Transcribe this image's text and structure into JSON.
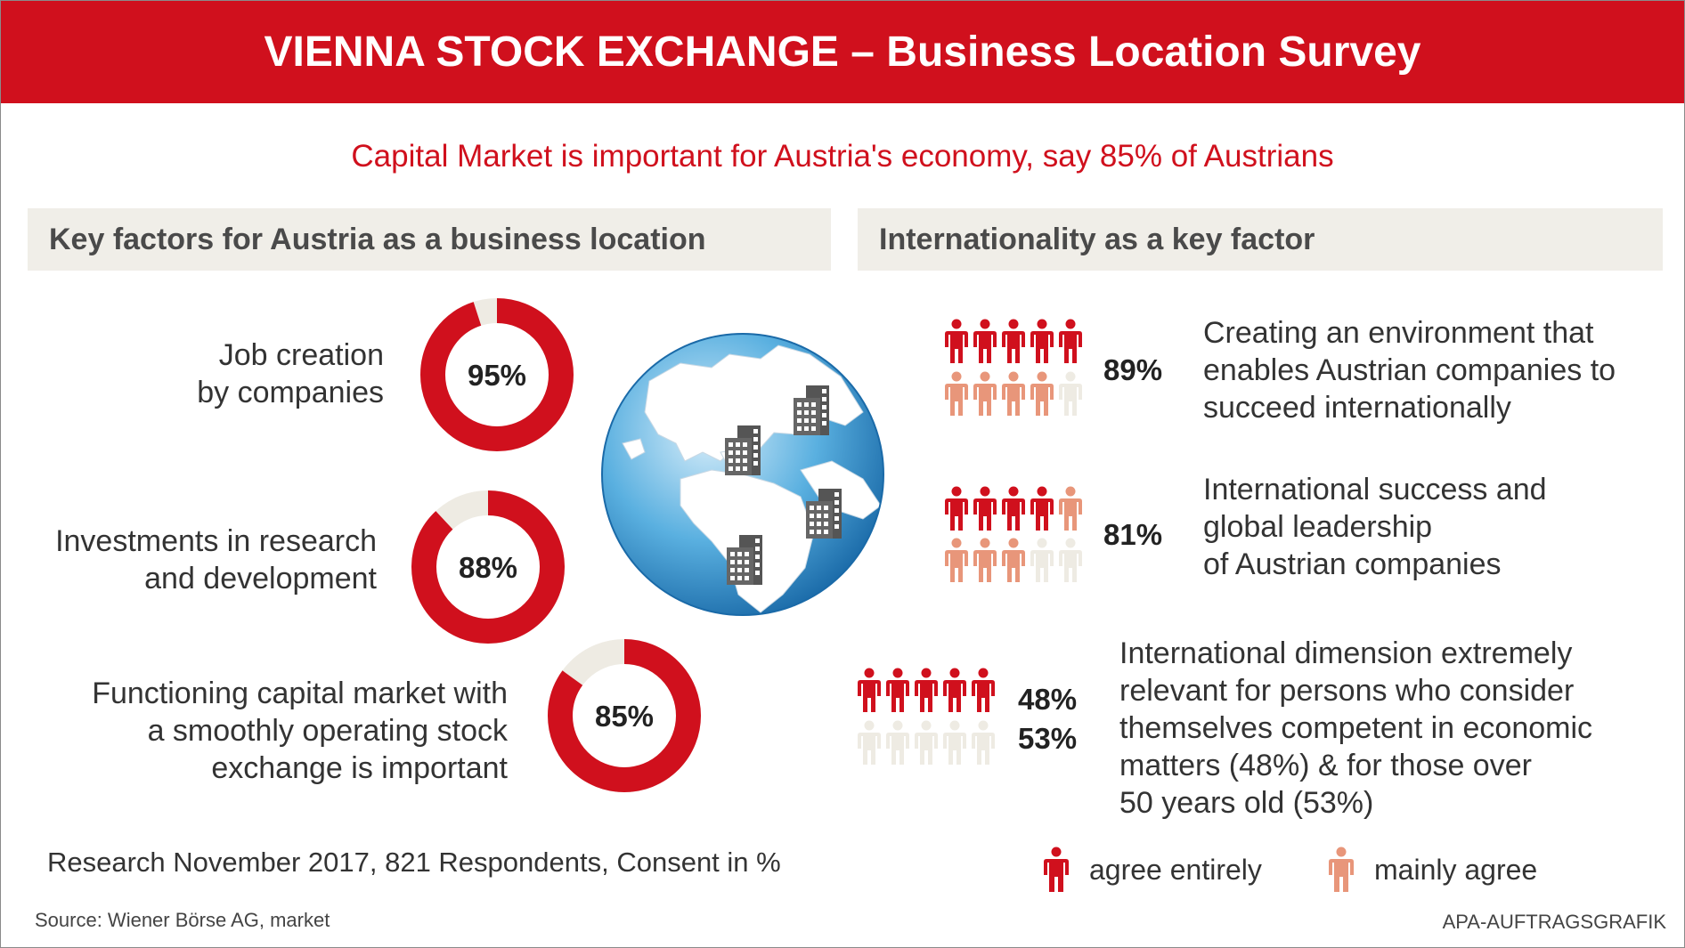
{
  "header": {
    "title": "VIENNA STOCK EXCHANGE – Business Location Survey"
  },
  "subtitle": "Capital Market is important for Austria's economy, say 85% of Austrians",
  "left_panel": {
    "title": "Key factors for Austria as a business location"
  },
  "right_panel": {
    "title": "Internationality as a key factor"
  },
  "colors": {
    "red": "#d0101d",
    "salmon": "#e8967a",
    "light": "#eeebe3",
    "panel_bg": "#f0eee8"
  },
  "icons": {
    "globe": "globe-icon",
    "building": "office-building-icon",
    "person": "person-icon"
  },
  "footer": {
    "research": "Research November 2017, 821 Respondents, Consent in %",
    "source": "Source: Wiener Börse AG, market",
    "credit": "APA-AUFTRAGSGRAFIK"
  },
  "legend": {
    "agree_entirely": "agree entirely",
    "mainly_agree": "mainly agree"
  },
  "chart_data": [
    {
      "type": "pie",
      "title": "Key factors for Austria as a business location",
      "categories": [
        "Job creation by companies",
        "Investments in research and development",
        "Functioning capital market with a smoothly operating stock exchange is important"
      ],
      "label_lines": [
        [
          "Job creation",
          "by companies"
        ],
        [
          "Investments in research",
          "and development"
        ],
        [
          "Functioning capital market with",
          "a smoothly operating stock",
          "exchange is important"
        ]
      ],
      "values": [
        95,
        88,
        85
      ],
      "value_labels": [
        "95%",
        "88%",
        "85%"
      ]
    },
    {
      "type": "bar",
      "title": "Internationality as a key factor",
      "items": [
        {
          "label_lines": [
            "Creating an environment that",
            "enables Austrian companies to",
            "succeed internationally"
          ],
          "value": 89,
          "value_label": "89%",
          "row1": [
            "red",
            "red",
            "red",
            "red",
            "red"
          ],
          "row2": [
            "salmon",
            "salmon",
            "salmon",
            "salmon",
            "light"
          ]
        },
        {
          "label_lines": [
            "International success and",
            "global leadership",
            "of Austrian companies"
          ],
          "value": 81,
          "value_label": "81%",
          "row1": [
            "red",
            "red",
            "red",
            "red",
            "salmon"
          ],
          "row2": [
            "salmon",
            "salmon",
            "salmon",
            "light",
            "light"
          ]
        },
        {
          "label_lines": [
            "International dimension extremely",
            "relevant for persons who consider",
            "themselves competent in economic",
            "matters (48%) & for those over",
            "50 years old (53%)"
          ],
          "value": 48,
          "value_label": "48%",
          "value2": 53,
          "value2_label": "53%",
          "row1": [
            "red",
            "red",
            "red",
            "red",
            "red"
          ],
          "row2": [
            "light",
            "light",
            "light",
            "light",
            "light"
          ]
        }
      ]
    }
  ]
}
